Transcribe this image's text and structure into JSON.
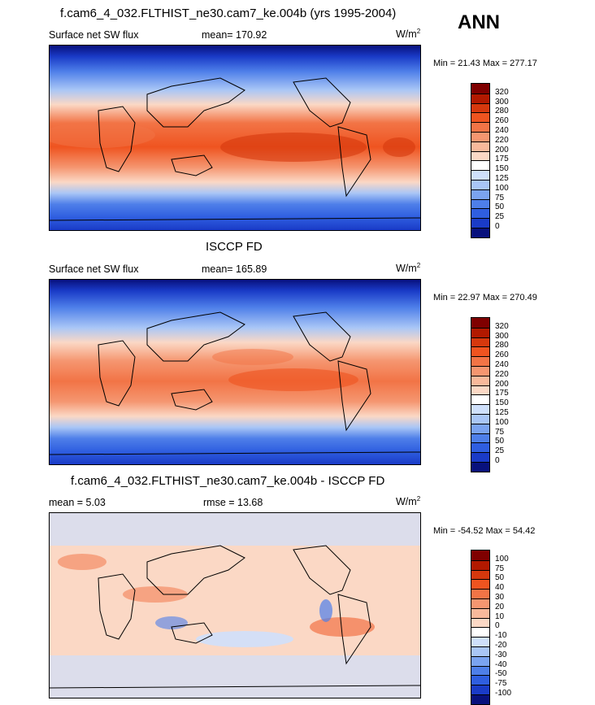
{
  "ann_label": "ANN",
  "panels": [
    {
      "title": "f.cam6_4_032.FLTHIST_ne30.cam7_ke.004b (yrs 1995-2004)",
      "left_label": "Surface net SW flux",
      "center_label": "mean= 170.92",
      "units": "W/m",
      "units_sup": "2",
      "minmax": "Min =  21.43 Max = 277.17",
      "colorbar": {
        "labels": [
          "320",
          "300",
          "280",
          "260",
          "240",
          "220",
          "200",
          "175",
          "150",
          "125",
          "100",
          "75",
          "50",
          "25",
          "0"
        ],
        "colors": [
          "#7f0000",
          "#b21900",
          "#d6380d",
          "#ef5420",
          "#f27446",
          "#f59670",
          "#f8b99b",
          "#fbd8c5",
          "#ffffff",
          "#cfe0fb",
          "#a9c6f6",
          "#7aa3f0",
          "#4e7fe9",
          "#2f5ee0",
          "#1a3bc7",
          "#08117d"
        ]
      }
    },
    {
      "title": "ISCCP FD",
      "left_label": "Surface net SW flux",
      "center_label": "mean= 165.89",
      "units": "W/m",
      "units_sup": "2",
      "minmax": "Min =  22.97 Max = 270.49",
      "colorbar": {
        "labels": [
          "320",
          "300",
          "280",
          "260",
          "240",
          "220",
          "200",
          "175",
          "150",
          "125",
          "100",
          "75",
          "50",
          "25",
          "0"
        ],
        "colors": [
          "#7f0000",
          "#b21900",
          "#d6380d",
          "#ef5420",
          "#f27446",
          "#f59670",
          "#f8b99b",
          "#fbd8c5",
          "#ffffff",
          "#cfe0fb",
          "#a9c6f6",
          "#7aa3f0",
          "#4e7fe9",
          "#2f5ee0",
          "#1a3bc7",
          "#08117d"
        ]
      }
    },
    {
      "title": "f.cam6_4_032.FLTHIST_ne30.cam7_ke.004b - ISCCP FD",
      "left_label": "mean =   5.03",
      "center_label": "rmse =  13.68",
      "units": "W/m",
      "units_sup": "2",
      "minmax": "Min = -54.52 Max =  54.42",
      "colorbar": {
        "labels": [
          "100",
          "75",
          "50",
          "40",
          "30",
          "20",
          "10",
          "0",
          "-10",
          "-20",
          "-30",
          "-40",
          "-50",
          "-75",
          "-100"
        ],
        "colors": [
          "#7f0000",
          "#b21900",
          "#d6380d",
          "#ef5420",
          "#f27446",
          "#f59670",
          "#f8b99b",
          "#fbd8c5",
          "#ffffff",
          "#cfe0fb",
          "#a9c6f6",
          "#7aa3f0",
          "#4e7fe9",
          "#2f5ee0",
          "#1a3bc7",
          "#08117d"
        ]
      }
    }
  ]
}
